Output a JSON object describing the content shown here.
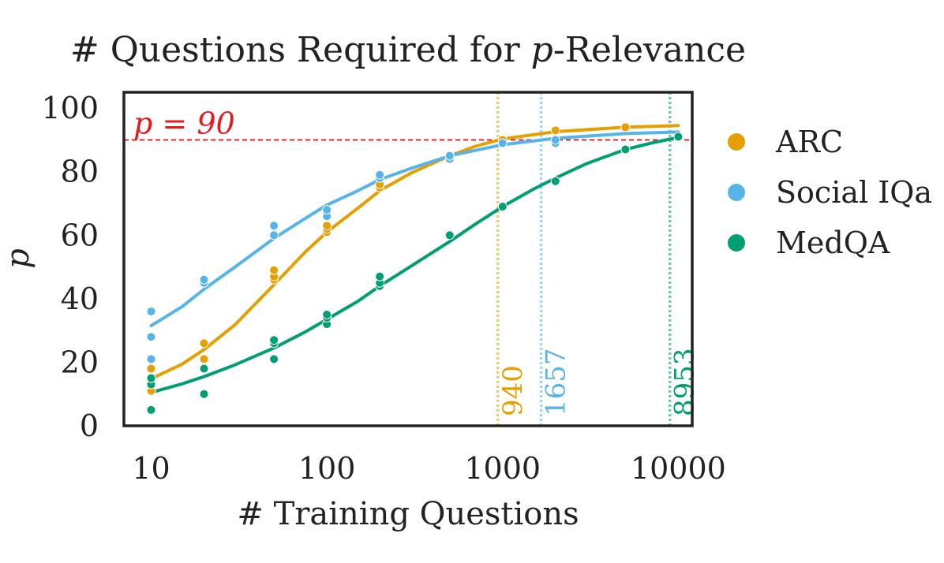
{
  "chart_data": {
    "type": "scatter",
    "title": "# Questions Required for p-Relevance",
    "title_prefix": "# Questions Required for ",
    "title_italic": "p",
    "title_suffix": "-Relevance",
    "xlabel": "# Training Questions",
    "ylabel": "p",
    "x_scale": "log",
    "xlim": [
      7,
      12000
    ],
    "ylim": [
      0,
      105
    ],
    "x_ticks": [
      10,
      100,
      1000,
      10000
    ],
    "x_tick_labels": [
      "10",
      "100",
      "1000",
      "10000"
    ],
    "y_ticks": [
      0,
      20,
      40,
      60,
      80,
      100
    ],
    "y_tick_labels": [
      "0",
      "20",
      "40",
      "60",
      "80",
      "100"
    ],
    "grid": false,
    "legend_placement": "outside-right",
    "threshold": {
      "value": 90,
      "label": "p = 90",
      "color": "#e8191c"
    },
    "series": [
      {
        "name": "ARC",
        "color": "#e69f00",
        "threshold_x": 940,
        "threshold_label": "940",
        "points": [
          [
            10,
            11
          ],
          [
            10,
            14
          ],
          [
            10,
            18
          ],
          [
            20,
            21
          ],
          [
            20,
            26
          ],
          [
            50,
            46
          ],
          [
            50,
            47
          ],
          [
            50,
            49
          ],
          [
            100,
            61
          ],
          [
            100,
            62
          ],
          [
            100,
            63
          ],
          [
            200,
            75
          ],
          [
            200,
            76
          ],
          [
            500,
            85
          ],
          [
            1000,
            90
          ],
          [
            2000,
            93
          ],
          [
            5000,
            94
          ]
        ],
        "fit": [
          [
            10,
            14.8
          ],
          [
            15,
            19.4
          ],
          [
            20,
            24
          ],
          [
            30,
            31.8
          ],
          [
            50,
            44.4
          ],
          [
            75,
            54.6
          ],
          [
            100,
            61
          ],
          [
            150,
            68.5
          ],
          [
            200,
            74
          ],
          [
            300,
            79.5
          ],
          [
            500,
            85
          ],
          [
            700,
            88
          ],
          [
            1000,
            90.3
          ],
          [
            2000,
            92.6
          ],
          [
            5000,
            94
          ],
          [
            10000,
            94.5
          ]
        ]
      },
      {
        "name": "Social IQa",
        "color": "#56b4e9",
        "threshold_x": 1657,
        "threshold_label": "1657",
        "points": [
          [
            10,
            21
          ],
          [
            10,
            28
          ],
          [
            10,
            36
          ],
          [
            20,
            45
          ],
          [
            20,
            46
          ],
          [
            50,
            60
          ],
          [
            50,
            63
          ],
          [
            100,
            66
          ],
          [
            100,
            68
          ],
          [
            200,
            78
          ],
          [
            200,
            79
          ],
          [
            500,
            84
          ],
          [
            500,
            85
          ],
          [
            1000,
            89
          ],
          [
            2000,
            89
          ],
          [
            2000,
            90
          ]
        ],
        "fit": [
          [
            10,
            31.5
          ],
          [
            15,
            37.5
          ],
          [
            20,
            43
          ],
          [
            30,
            50
          ],
          [
            50,
            59
          ],
          [
            75,
            65.2
          ],
          [
            100,
            69.5
          ],
          [
            150,
            74
          ],
          [
            200,
            77.5
          ],
          [
            300,
            81
          ],
          [
            500,
            85
          ],
          [
            1000,
            88.5
          ],
          [
            2000,
            90.5
          ],
          [
            5000,
            92
          ],
          [
            10000,
            92.5
          ]
        ]
      },
      {
        "name": "MedQA",
        "color": "#009e73",
        "threshold_x": 8953,
        "threshold_label": "8953",
        "points": [
          [
            10,
            5
          ],
          [
            10,
            13
          ],
          [
            10,
            15
          ],
          [
            20,
            10
          ],
          [
            20,
            18
          ],
          [
            50,
            21
          ],
          [
            50,
            26
          ],
          [
            50,
            27
          ],
          [
            100,
            32
          ],
          [
            100,
            34
          ],
          [
            100,
            35
          ],
          [
            200,
            44
          ],
          [
            200,
            45
          ],
          [
            200,
            47
          ],
          [
            500,
            60
          ],
          [
            1000,
            69
          ],
          [
            2000,
            77
          ],
          [
            5000,
            87
          ],
          [
            10000,
            91
          ]
        ],
        "fit": [
          [
            10,
            10.5
          ],
          [
            15,
            13.2
          ],
          [
            20,
            15.5
          ],
          [
            30,
            19.2
          ],
          [
            50,
            24.5
          ],
          [
            75,
            29.5
          ],
          [
            100,
            33.5
          ],
          [
            150,
            39.2
          ],
          [
            200,
            44
          ],
          [
            300,
            50.2
          ],
          [
            500,
            58
          ],
          [
            700,
            63.5
          ],
          [
            1000,
            69
          ],
          [
            1500,
            74.5
          ],
          [
            2000,
            78
          ],
          [
            3000,
            82.5
          ],
          [
            5000,
            87
          ],
          [
            7000,
            89
          ],
          [
            10000,
            90.8
          ]
        ]
      }
    ]
  }
}
